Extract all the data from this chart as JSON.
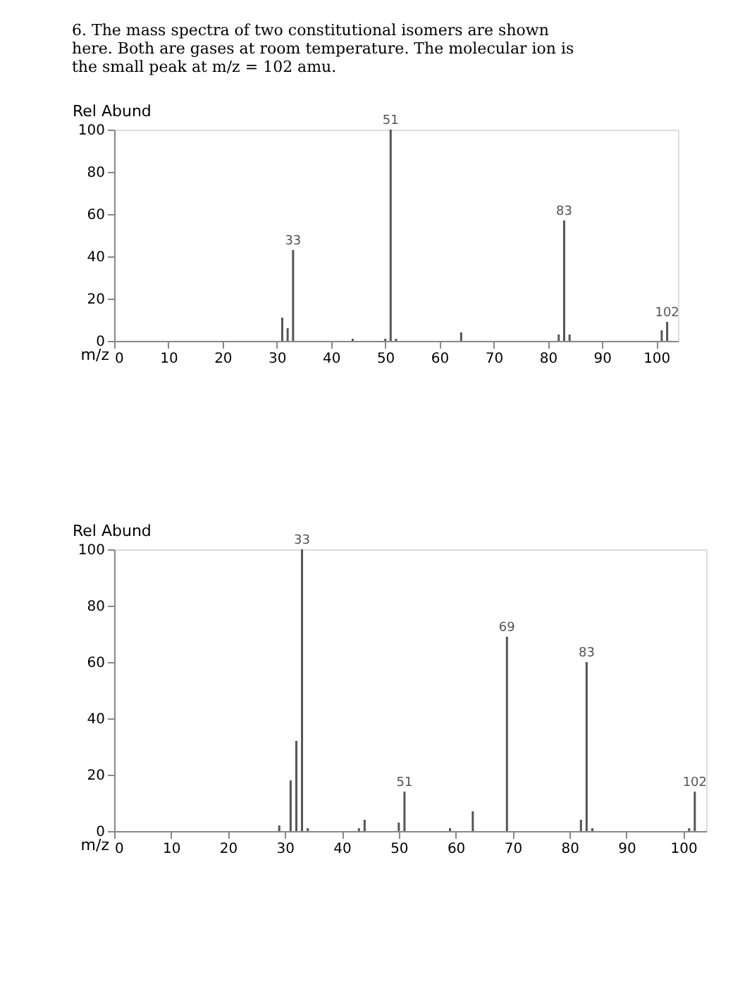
{
  "chart_data": [
    {
      "type": "bar",
      "title": "6. The mass spectra of two constitutional isomers are shown here. Both are gases at room temperature. The molecular ion is the small peak at m/z = 102 amu.",
      "xlabel": "m/z",
      "ylabel": "Rel Abund",
      "x": [
        31,
        32,
        33,
        44,
        50,
        51,
        52,
        64,
        82,
        83,
        84,
        101,
        102
      ],
      "series": [
        {
          "color": "#555555",
          "values": [
            11,
            6,
            43,
            1,
            1,
            100,
            1,
            4,
            3,
            57,
            3,
            5,
            9
          ]
        }
      ],
      "xlim": [
        0,
        104
      ],
      "xticks": [
        0,
        10,
        20,
        30,
        40,
        50,
        60,
        70,
        80,
        90,
        100
      ],
      "ylim": [
        0,
        100
      ],
      "yticks": [
        0,
        20,
        40,
        60,
        80,
        100
      ],
      "grid": false,
      "annotations": [
        {
          "text": "33",
          "x": 33,
          "y": 43
        },
        {
          "text": "51",
          "x": 51,
          "y": 100
        },
        {
          "text": "83",
          "x": 83,
          "y": 57
        },
        {
          "text": "102",
          "x": 102,
          "y": 9
        }
      ]
    },
    {
      "type": "bar",
      "xlabel": "m/z",
      "ylabel": "Rel Abund",
      "x": [
        29,
        31,
        32,
        33,
        34,
        43,
        44,
        50,
        51,
        59,
        63,
        69,
        82,
        83,
        84,
        101,
        102
      ],
      "series": [
        {
          "color": "#555555",
          "values": [
            2,
            18,
            32,
            100,
            1,
            1,
            4,
            3,
            14,
            1,
            7,
            69,
            4,
            60,
            1,
            1,
            14
          ]
        }
      ],
      "xlim": [
        0,
        104
      ],
      "xticks": [
        0,
        10,
        20,
        30,
        40,
        50,
        60,
        70,
        80,
        90,
        100
      ],
      "ylim": [
        0,
        100
      ],
      "yticks": [
        0,
        20,
        40,
        60,
        80,
        100
      ],
      "grid": false,
      "annotations": [
        {
          "text": "33",
          "x": 33,
          "y": 100
        },
        {
          "text": "51",
          "x": 51,
          "y": 14
        },
        {
          "text": "69",
          "x": 69,
          "y": 69
        },
        {
          "text": "83",
          "x": 83,
          "y": 60
        },
        {
          "text": "102",
          "x": 102,
          "y": 14
        }
      ]
    }
  ]
}
